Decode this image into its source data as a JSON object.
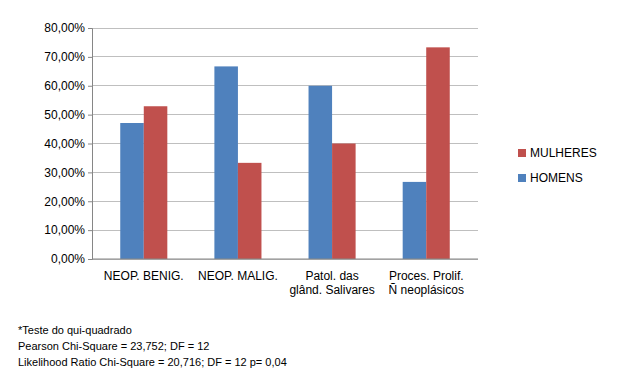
{
  "chart_data": {
    "type": "bar",
    "categories": [
      "NEOP. BENIG.",
      "NEOP. MALIG.",
      "Patol. das\nglând. Salivares",
      "Proces. Prolif.\nÑ neoplásicos"
    ],
    "series": [
      {
        "name": "HOMENS",
        "color": "#4F81BD",
        "values": [
          47.1,
          66.7,
          60,
          26.7
        ]
      },
      {
        "name": "MULHERES",
        "color": "#C0504D",
        "values": [
          52.9,
          33.3,
          40,
          73.3
        ]
      }
    ],
    "ylim": [
      0,
      80
    ],
    "yticks": [
      {
        "value": 0,
        "label": "0,00%"
      },
      {
        "value": 10,
        "label": "10,00%"
      },
      {
        "value": 20,
        "label": "20,00%"
      },
      {
        "value": 30,
        "label": "30,00%"
      },
      {
        "value": 40,
        "label": "40,00%"
      },
      {
        "value": 50,
        "label": "50,00%"
      },
      {
        "value": 60,
        "label": "60,00%"
      },
      {
        "value": 70,
        "label": "70,00%"
      },
      {
        "value": 80,
        "label": "80,00%"
      }
    ],
    "grid": true,
    "legend": "right",
    "annotations": [
      "*Teste do qui-quadrado",
      "Pearson Chi-Square = 23,752; DF = 12",
      "Likelihood Ratio Chi-Square = 20,716; DF = 12 p= 0,04"
    ]
  }
}
